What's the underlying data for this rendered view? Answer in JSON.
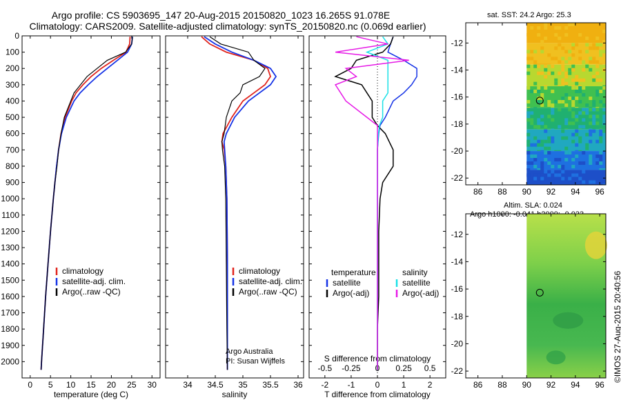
{
  "header": {
    "title_line1": "Argo profile: CS 5903695_147 20-Aug-2015 20150820_1023 16.265S 91.078E",
    "title_line2": "Climatology: CARS2009. Satellite-adjusted climatology: synTS_20150820.nc (0.069d earlier)"
  },
  "right_panels": {
    "sst_title": "sat. SST: 24.2 Argo: 25.3",
    "sla_title1": "Altim. SLA: 0.024",
    "sla_title2": "Argo h1000: -0.041 h2000: -0.033"
  },
  "stamp": "©IMOS 27-Aug-2015 20:40:56",
  "colors": {
    "climatology": "#e0231c",
    "satellite": "#1432e6",
    "argo": "#000000",
    "argo_adj": "#e619e6",
    "satellite_s": "#19e0e6"
  },
  "chart_data": [
    {
      "type": "line",
      "name": "temperature",
      "xlabel": "temperature (deg C)",
      "ylabel": "",
      "xlim": [
        -2,
        32
      ],
      "ylim": [
        2100,
        0
      ],
      "xticks": [
        0,
        5,
        10,
        15,
        20,
        25,
        30
      ],
      "yticks": [
        0,
        100,
        200,
        300,
        400,
        500,
        600,
        700,
        800,
        900,
        1000,
        1100,
        1200,
        1300,
        1400,
        1500,
        1600,
        1700,
        1800,
        1900,
        2000
      ],
      "legend": [
        "climatology",
        "satellite-adj. clim.",
        "Argo(..raw -QC)"
      ],
      "legend_position": "lower-right",
      "depth": [
        5,
        50,
        100,
        150,
        200,
        250,
        300,
        350,
        400,
        500,
        600,
        700,
        800,
        900,
        1000,
        1200,
        1400,
        1600,
        1800,
        2000,
        2050
      ],
      "series": [
        {
          "name": "climatology",
          "values": [
            24.6,
            24.5,
            23.6,
            20.5,
            17.5,
            15.0,
            13.0,
            11.3,
            10.2,
            8.6,
            7.6,
            7.0,
            6.5,
            6.1,
            5.7,
            5.0,
            4.4,
            3.8,
            3.3,
            2.8,
            2.7
          ]
        },
        {
          "name": "satellite-adj. clim.",
          "values": [
            25.2,
            25.0,
            24.0,
            21.5,
            19.0,
            16.5,
            14.3,
            12.3,
            10.8,
            8.9,
            7.7,
            7.0,
            6.5,
            6.1,
            5.7,
            5.0,
            4.4,
            3.8,
            3.3,
            2.8,
            2.7
          ]
        },
        {
          "name": "Argo(..raw -QC)",
          "values": [
            25.2,
            25.0,
            23.5,
            19.0,
            16.5,
            14.0,
            12.4,
            10.8,
            10.0,
            8.4,
            7.6,
            7.0,
            6.6,
            6.1,
            5.7,
            5.0,
            4.4,
            3.8,
            3.3,
            2.8,
            2.7
          ]
        }
      ]
    },
    {
      "type": "line",
      "name": "salinity",
      "xlabel": "salinity",
      "ylabel": "",
      "xlim": [
        33.6,
        36.1
      ],
      "ylim": [
        2100,
        0
      ],
      "xticks": [
        34,
        34.5,
        35,
        35.5,
        36
      ],
      "yticks": [
        0,
        100,
        200,
        300,
        400,
        500,
        600,
        700,
        800,
        900,
        1000,
        1100,
        1200,
        1300,
        1400,
        1500,
        1600,
        1700,
        1800,
        1900,
        2000
      ],
      "legend": [
        "climatology",
        "satellite-adj. clim.",
        "Argo(..raw -QC)"
      ],
      "legend_position": "lower-right",
      "annotation": [
        "Argo Australia",
        "PI: Susan Wijffels"
      ],
      "depth": [
        5,
        50,
        100,
        150,
        200,
        250,
        300,
        350,
        400,
        500,
        600,
        650,
        700,
        800,
        1000,
        1400,
        1800,
        2050
      ],
      "series": [
        {
          "name": "climatology",
          "values": [
            34.25,
            34.4,
            34.7,
            35.2,
            35.45,
            35.5,
            35.4,
            35.2,
            35.0,
            34.8,
            34.64,
            34.62,
            34.66,
            34.69,
            34.71,
            34.72,
            34.72,
            34.72
          ]
        },
        {
          "name": "satellite-adj. clim.",
          "values": [
            34.3,
            34.5,
            34.8,
            35.2,
            35.5,
            35.6,
            35.5,
            35.3,
            35.1,
            34.85,
            34.7,
            34.66,
            34.67,
            34.69,
            34.71,
            34.72,
            34.72,
            34.72
          ]
        },
        {
          "name": "Argo(..raw -QC)",
          "values": [
            34.4,
            34.6,
            35.1,
            35.2,
            35.4,
            35.3,
            35.0,
            34.95,
            34.8,
            34.7,
            34.66,
            34.62,
            34.63,
            34.67,
            34.69,
            34.7,
            34.71,
            34.72
          ]
        }
      ]
    },
    {
      "type": "line",
      "name": "differences",
      "xlabel": "T difference from climatology",
      "xlabel_top": "S difference from climatology",
      "xlim": [
        -2.6,
        2.6
      ],
      "ylim": [
        2100,
        0
      ],
      "xticks": [
        -2,
        -1,
        0,
        1,
        2
      ],
      "s_ticks": [
        -0.5,
        -0.25,
        0,
        0.25,
        0.5
      ],
      "yticks": [
        0,
        100,
        200,
        300,
        400,
        500,
        600,
        700,
        800,
        900,
        1000,
        1100,
        1200,
        1300,
        1400,
        1500,
        1600,
        1700,
        1800,
        1900,
        2000
      ],
      "legend": {
        "temperature_header": "temperature",
        "salinity_header": "salinity",
        "t_satellite": "satellite",
        "t_argo": "Argo(-adj)",
        "s_satellite": "satellite",
        "s_argo": "Argo(-adj)"
      },
      "legend_position": "lower",
      "depth": [
        5,
        50,
        100,
        150,
        200,
        250,
        300,
        350,
        400,
        500,
        550,
        600,
        700,
        800,
        900,
        1000,
        1200,
        1400,
        1600,
        1800,
        2050
      ],
      "series": [
        {
          "name": "T satellite",
          "values": [
            0.6,
            0.5,
            0.4,
            1.0,
            1.5,
            1.5,
            1.3,
            1.0,
            0.6,
            0.3,
            0.1,
            0.05,
            0.0,
            0.0,
            0.0,
            0.0,
            0.0,
            0.0,
            0.0,
            0.0,
            0.0
          ]
        },
        {
          "name": "T Argo(-adj)",
          "values": [
            0.6,
            0.5,
            0.2,
            -0.8,
            -1.0,
            -1.6,
            -0.6,
            -0.4,
            -0.2,
            -0.2,
            0.0,
            0.3,
            0.6,
            0.6,
            0.2,
            0.1,
            0.05,
            0.05,
            0.05,
            0.0,
            0.0
          ]
        },
        {
          "name": "S satellite",
          "values": [
            0.05,
            0.1,
            -0.1,
            0.1,
            0.1,
            0.1,
            0.1,
            0.1,
            0.05,
            0.05,
            0.02,
            0.01,
            0.0,
            0.0,
            0.0,
            0.0,
            0.0,
            0.0,
            0.0,
            0.0,
            0.0
          ]
        },
        {
          "name": "S Argo(-adj)",
          "values": [
            -0.2,
            0.1,
            -0.4,
            0.3,
            -0.3,
            -0.2,
            -0.4,
            -0.35,
            -0.3,
            -0.1,
            0.0,
            0.0,
            0.0,
            0.0,
            0.0,
            0.0,
            0.0,
            0.0,
            0.0,
            0.0,
            0.0
          ]
        }
      ]
    },
    {
      "type": "heatmap",
      "name": "sat-sst-map",
      "xticks": [
        86,
        88,
        90,
        92,
        94,
        96
      ],
      "yticks": [
        -12,
        -14,
        -16,
        -18,
        -20,
        -22
      ],
      "xlim": [
        85,
        96.5
      ],
      "ylim": [
        -22.5,
        -10.5
      ],
      "marker": {
        "lon": 91.078,
        "lat": -16.265
      },
      "rows": [
        -11.2,
        -12.8,
        -14.4,
        -16.0,
        -17.6,
        -19.2,
        -20.8,
        -22.0
      ],
      "colors": [
        "#f0b010",
        "#f0c020",
        "#b8d830",
        "#40c050",
        "#20b070",
        "#20a8c0",
        "#1e70e0",
        "#1d4fc8"
      ]
    },
    {
      "type": "heatmap",
      "name": "altim-sla-map",
      "xticks": [
        86,
        88,
        90,
        92,
        94,
        96
      ],
      "yticks": [
        -12,
        -14,
        -16,
        -18,
        -20,
        -22
      ],
      "xlim": [
        85,
        96.5
      ],
      "ylim": [
        -22.5,
        -10.5
      ],
      "marker": {
        "lon": 91.078,
        "lat": -16.265
      }
    }
  ]
}
